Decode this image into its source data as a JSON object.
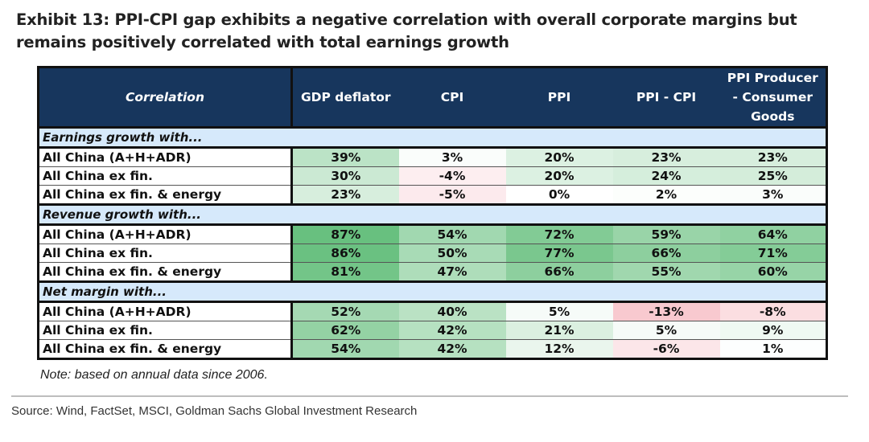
{
  "title": "Exhibit 13: PPI-CPI gap exhibits a negative correlation with overall corporate margins but remains positively correlated with total earnings growth",
  "table": {
    "header_label": "Correlation",
    "columns": [
      "GDP deflator",
      "CPI",
      "PPI",
      "PPI - CPI",
      "PPI Producer - Consumer Goods"
    ],
    "sections": [
      {
        "label": "Earnings growth with...",
        "rows": [
          {
            "label": "All China (A+H+ADR)",
            "values": [
              39,
              3,
              20,
              23,
              23
            ]
          },
          {
            "label": "All China ex fin.",
            "values": [
              30,
              -4,
              20,
              24,
              25
            ]
          },
          {
            "label": "All China ex fin. & energy",
            "values": [
              23,
              -5,
              0,
              2,
              3
            ]
          }
        ]
      },
      {
        "label": "Revenue growth with...",
        "rows": [
          {
            "label": "All China (A+H+ADR)",
            "values": [
              87,
              54,
              72,
              59,
              64
            ]
          },
          {
            "label": "All China ex fin.",
            "values": [
              86,
              50,
              77,
              66,
              71
            ]
          },
          {
            "label": "All China ex fin. & energy",
            "values": [
              81,
              47,
              66,
              55,
              60
            ]
          }
        ]
      },
      {
        "label": "Net margin with...",
        "rows": [
          {
            "label": "All China (A+H+ADR)",
            "values": [
              52,
              40,
              5,
              -13,
              -8
            ]
          },
          {
            "label": "All China ex fin.",
            "values": [
              62,
              42,
              21,
              5,
              9
            ]
          },
          {
            "label": "All China ex fin. & energy",
            "values": [
              54,
              42,
              12,
              -6,
              1
            ]
          }
        ]
      }
    ]
  },
  "colors": {
    "header_bg": "#17365d",
    "section_bg": "#d6e9fb",
    "positive_max": "#63be7b",
    "negative_max": "#f8c9cf",
    "neutral": "#ffffff"
  },
  "note": "Note: based on annual data since 2006.",
  "source": "Source: Wind, FactSet, MSCI, Goldman Sachs Global Investment Research",
  "chart_data": {
    "type": "table",
    "title": "Exhibit 13: PPI-CPI gap exhibits a negative correlation with overall corporate margins but remains positively correlated with total earnings growth",
    "columns": [
      "Correlation",
      "GDP deflator",
      "CPI",
      "PPI",
      "PPI - CPI",
      "PPI Producer - Consumer Goods"
    ],
    "unit": "%",
    "rows": [
      {
        "group": "Earnings growth with...",
        "label": "All China (A+H+ADR)",
        "values": [
          39,
          3,
          20,
          23,
          23
        ]
      },
      {
        "group": "Earnings growth with...",
        "label": "All China ex fin.",
        "values": [
          30,
          -4,
          20,
          24,
          25
        ]
      },
      {
        "group": "Earnings growth with...",
        "label": "All China ex fin. & energy",
        "values": [
          23,
          -5,
          0,
          2,
          3
        ]
      },
      {
        "group": "Revenue growth with...",
        "label": "All China (A+H+ADR)",
        "values": [
          87,
          54,
          72,
          59,
          64
        ]
      },
      {
        "group": "Revenue growth with...",
        "label": "All China ex fin.",
        "values": [
          86,
          50,
          77,
          66,
          71
        ]
      },
      {
        "group": "Revenue growth with...",
        "label": "All China ex fin. & energy",
        "values": [
          81,
          47,
          66,
          55,
          60
        ]
      },
      {
        "group": "Net margin with...",
        "label": "All China (A+H+ADR)",
        "values": [
          52,
          40,
          5,
          -13,
          -8
        ]
      },
      {
        "group": "Net margin with...",
        "label": "All China ex fin.",
        "values": [
          62,
          42,
          21,
          5,
          9
        ]
      },
      {
        "group": "Net margin with...",
        "label": "All China ex fin. & energy",
        "values": [
          54,
          42,
          12,
          -6,
          1
        ]
      }
    ]
  }
}
